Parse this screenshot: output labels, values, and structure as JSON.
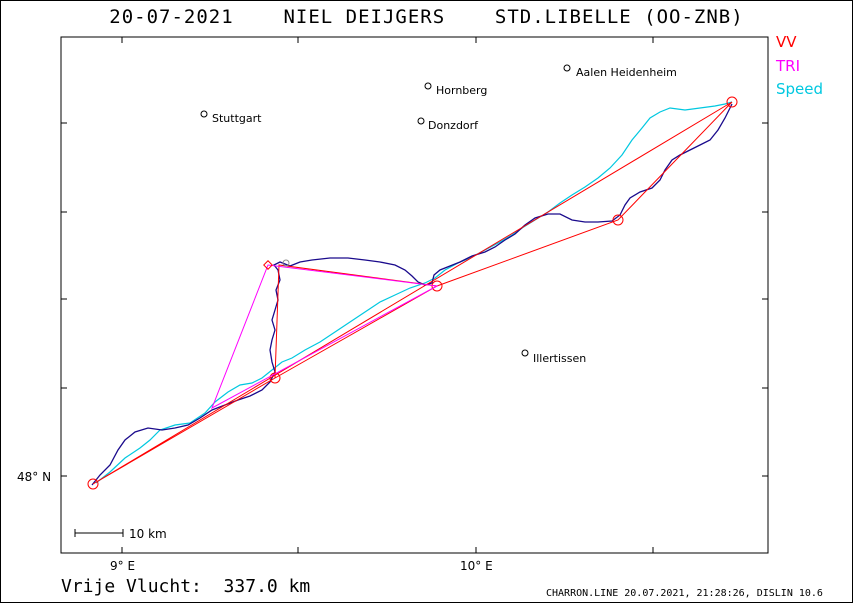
{
  "title": "20-07-2021    NIEL DEIJGERS    STD.LIBELLE (OO-ZNB)",
  "legend": {
    "vv": "VV",
    "tri": "TRI",
    "speed": "Speed",
    "colors": {
      "vv": "#ff0000",
      "tri": "#ff00ff",
      "speed": "#00c8e0",
      "track": "#1a0a8c"
    }
  },
  "places": [
    {
      "name": "Aalen Heidenheim"
    },
    {
      "name": "Hornberg"
    },
    {
      "name": "Stuttgart"
    },
    {
      "name": "Donzdorf"
    },
    {
      "name": "Illertissen"
    }
  ],
  "axes": {
    "lat_label": "48° N",
    "lon_labels": [
      "9° E",
      "10° E"
    ]
  },
  "scale_bar": "10 km",
  "footer": {
    "distance": "Vrije Vlucht:  337.0 km",
    "program": "CHARRON.LINE 20.07.2021, 21:28:26, DISLIN 10.6"
  }
}
